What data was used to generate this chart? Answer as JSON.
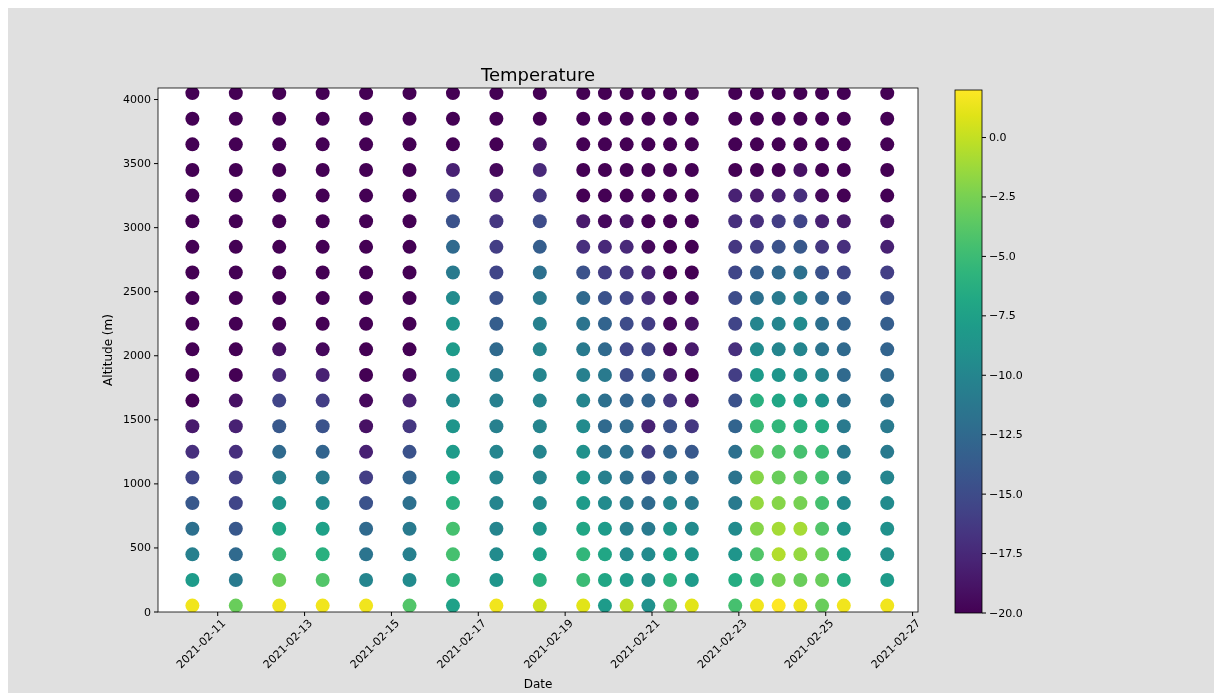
{
  "chart_data": {
    "type": "scatter",
    "title": "Temperature",
    "xlabel": "Date",
    "ylabel": "Altitude (m)",
    "marker": "circle",
    "grid": false,
    "xlim": [
      "2021-02-09T15:00",
      "2021-02-27T03:00"
    ],
    "xticks": [
      "2021-02-11",
      "2021-02-13",
      "2021-02-15",
      "2021-02-17",
      "2021-02-19",
      "2021-02-21",
      "2021-02-23",
      "2021-02-25",
      "2021-02-27"
    ],
    "ylim": [
      0,
      4090
    ],
    "yticks": [
      0,
      500,
      1000,
      1500,
      2000,
      2500,
      3000,
      3500,
      4000
    ],
    "clim": [
      -20,
      2
    ],
    "cticks": [
      {
        "value": 0,
        "label": "0.0"
      },
      {
        "value": -2.5,
        "label": "−2.5"
      },
      {
        "value": -5,
        "label": "−5.0"
      },
      {
        "value": -7.5,
        "label": "−7.5"
      },
      {
        "value": -10,
        "label": "−10.0"
      },
      {
        "value": -12.5,
        "label": "−12.5"
      },
      {
        "value": -15,
        "label": "−15.0"
      },
      {
        "value": -17.5,
        "label": "−17.5"
      },
      {
        "value": -20,
        "label": "−20.0"
      }
    ],
    "x": [
      "2021-02-10T10:00",
      "2021-02-10T10:00",
      "2021-02-10T10:00",
      "2021-02-10T10:00",
      "2021-02-10T10:00",
      "2021-02-10T10:00",
      "2021-02-10T10:00",
      "2021-02-10T10:00",
      "2021-02-10T10:00",
      "2021-02-10T10:00",
      "2021-02-10T10:00",
      "2021-02-10T10:00",
      "2021-02-10T10:00",
      "2021-02-10T10:00",
      "2021-02-10T10:00",
      "2021-02-10T10:00",
      "2021-02-10T10:00",
      "2021-02-10T10:00",
      "2021-02-10T10:00",
      "2021-02-10T10:00",
      "2021-02-10T10:00",
      "2021-02-11T10:00",
      "2021-02-11T10:00",
      "2021-02-11T10:00",
      "2021-02-11T10:00",
      "2021-02-11T10:00",
      "2021-02-11T10:00",
      "2021-02-11T10:00",
      "2021-02-11T10:00",
      "2021-02-11T10:00",
      "2021-02-11T10:00",
      "2021-02-11T10:00",
      "2021-02-11T10:00",
      "2021-02-11T10:00",
      "2021-02-11T10:00",
      "2021-02-11T10:00",
      "2021-02-11T10:00",
      "2021-02-11T10:00",
      "2021-02-11T10:00",
      "2021-02-11T10:00",
      "2021-02-11T10:00",
      "2021-02-11T10:00",
      "2021-02-12T10:00",
      "2021-02-12T10:00",
      "2021-02-12T10:00",
      "2021-02-12T10:00",
      "2021-02-12T10:00",
      "2021-02-12T10:00",
      "2021-02-12T10:00",
      "2021-02-12T10:00",
      "2021-02-12T10:00",
      "2021-02-12T10:00",
      "2021-02-12T10:00",
      "2021-02-12T10:00",
      "2021-02-12T10:00",
      "2021-02-12T10:00",
      "2021-02-12T10:00",
      "2021-02-12T10:00",
      "2021-02-12T10:00",
      "2021-02-12T10:00",
      "2021-02-12T10:00",
      "2021-02-12T10:00",
      "2021-02-12T10:00",
      "2021-02-13T10:00",
      "2021-02-13T10:00",
      "2021-02-13T10:00",
      "2021-02-13T10:00",
      "2021-02-13T10:00",
      "2021-02-13T10:00",
      "2021-02-13T10:00",
      "2021-02-13T10:00",
      "2021-02-13T10:00",
      "2021-02-13T10:00",
      "2021-02-13T10:00",
      "2021-02-13T10:00",
      "2021-02-13T10:00",
      "2021-02-13T10:00",
      "2021-02-13T10:00",
      "2021-02-13T10:00",
      "2021-02-13T10:00",
      "2021-02-13T10:00",
      "2021-02-13T10:00",
      "2021-02-13T10:00",
      "2021-02-13T10:00",
      "2021-02-14T10:00",
      "2021-02-14T10:00",
      "2021-02-14T10:00",
      "2021-02-14T10:00",
      "2021-02-14T10:00",
      "2021-02-14T10:00",
      "2021-02-14T10:00",
      "2021-02-14T10:00",
      "2021-02-14T10:00",
      "2021-02-14T10:00",
      "2021-02-14T10:00",
      "2021-02-14T10:00",
      "2021-02-14T10:00",
      "2021-02-14T10:00",
      "2021-02-14T10:00",
      "2021-02-14T10:00",
      "2021-02-14T10:00",
      "2021-02-14T10:00",
      "2021-02-14T10:00",
      "2021-02-14T10:00",
      "2021-02-14T10:00",
      "2021-02-15T10:00",
      "2021-02-15T10:00",
      "2021-02-15T10:00",
      "2021-02-15T10:00",
      "2021-02-15T10:00",
      "2021-02-15T10:00",
      "2021-02-15T10:00",
      "2021-02-15T10:00",
      "2021-02-15T10:00",
      "2021-02-15T10:00",
      "2021-02-15T10:00",
      "2021-02-15T10:00",
      "2021-02-15T10:00",
      "2021-02-15T10:00",
      "2021-02-15T10:00",
      "2021-02-15T10:00",
      "2021-02-15T10:00",
      "2021-02-15T10:00",
      "2021-02-15T10:00",
      "2021-02-15T10:00",
      "2021-02-15T10:00",
      "2021-02-16T10:00",
      "2021-02-16T10:00",
      "2021-02-16T10:00",
      "2021-02-16T10:00",
      "2021-02-16T10:00",
      "2021-02-16T10:00",
      "2021-02-16T10:00",
      "2021-02-16T10:00",
      "2021-02-16T10:00",
      "2021-02-16T10:00",
      "2021-02-16T10:00",
      "2021-02-16T10:00",
      "2021-02-16T10:00",
      "2021-02-16T10:00",
      "2021-02-16T10:00",
      "2021-02-16T10:00",
      "2021-02-16T10:00",
      "2021-02-16T10:00",
      "2021-02-16T10:00",
      "2021-02-16T10:00",
      "2021-02-16T10:00",
      "2021-02-17T10:00",
      "2021-02-17T10:00",
      "2021-02-17T10:00",
      "2021-02-17T10:00",
      "2021-02-17T10:00",
      "2021-02-17T10:00",
      "2021-02-17T10:00",
      "2021-02-17T10:00",
      "2021-02-17T10:00",
      "2021-02-17T10:00",
      "2021-02-17T10:00",
      "2021-02-17T10:00",
      "2021-02-17T10:00",
      "2021-02-17T10:00",
      "2021-02-17T10:00",
      "2021-02-17T10:00",
      "2021-02-17T10:00",
      "2021-02-17T10:00",
      "2021-02-17T10:00",
      "2021-02-17T10:00",
      "2021-02-17T10:00",
      "2021-02-18T10:00",
      "2021-02-18T10:00",
      "2021-02-18T10:00",
      "2021-02-18T10:00",
      "2021-02-18T10:00",
      "2021-02-18T10:00",
      "2021-02-18T10:00",
      "2021-02-18T10:00",
      "2021-02-18T10:00",
      "2021-02-18T10:00",
      "2021-02-18T10:00",
      "2021-02-18T10:00",
      "2021-02-18T10:00",
      "2021-02-18T10:00",
      "2021-02-18T10:00",
      "2021-02-18T10:00",
      "2021-02-18T10:00",
      "2021-02-18T10:00",
      "2021-02-18T10:00",
      "2021-02-18T10:00",
      "2021-02-18T10:00",
      "2021-02-19T10:00",
      "2021-02-19T10:00",
      "2021-02-19T10:00",
      "2021-02-19T10:00",
      "2021-02-19T10:00",
      "2021-02-19T10:00",
      "2021-02-19T10:00",
      "2021-02-19T10:00",
      "2021-02-19T10:00",
      "2021-02-19T10:00",
      "2021-02-19T10:00",
      "2021-02-19T10:00",
      "2021-02-19T10:00",
      "2021-02-19T10:00",
      "2021-02-19T10:00",
      "2021-02-19T10:00",
      "2021-02-19T10:00",
      "2021-02-19T10:00",
      "2021-02-19T10:00",
      "2021-02-19T10:00",
      "2021-02-19T10:00",
      "2021-02-19T22:00",
      "2021-02-19T22:00",
      "2021-02-19T22:00",
      "2021-02-19T22:00",
      "2021-02-19T22:00",
      "2021-02-19T22:00",
      "2021-02-19T22:00",
      "2021-02-19T22:00",
      "2021-02-19T22:00",
      "2021-02-19T22:00",
      "2021-02-19T22:00",
      "2021-02-19T22:00",
      "2021-02-19T22:00",
      "2021-02-19T22:00",
      "2021-02-19T22:00",
      "2021-02-19T22:00",
      "2021-02-19T22:00",
      "2021-02-19T22:00",
      "2021-02-19T22:00",
      "2021-02-19T22:00",
      "2021-02-19T22:00",
      "2021-02-20T10:00",
      "2021-02-20T10:00",
      "2021-02-20T10:00",
      "2021-02-20T10:00",
      "2021-02-20T10:00",
      "2021-02-20T10:00",
      "2021-02-20T10:00",
      "2021-02-20T10:00",
      "2021-02-20T10:00",
      "2021-02-20T10:00",
      "2021-02-20T10:00",
      "2021-02-20T10:00",
      "2021-02-20T10:00",
      "2021-02-20T10:00",
      "2021-02-20T10:00",
      "2021-02-20T10:00",
      "2021-02-20T10:00",
      "2021-02-20T10:00",
      "2021-02-20T10:00",
      "2021-02-20T10:00",
      "2021-02-20T10:00",
      "2021-02-20T22:00",
      "2021-02-20T22:00",
      "2021-02-20T22:00",
      "2021-02-20T22:00",
      "2021-02-20T22:00",
      "2021-02-20T22:00",
      "2021-02-20T22:00",
      "2021-02-20T22:00",
      "2021-02-20T22:00",
      "2021-02-20T22:00",
      "2021-02-20T22:00",
      "2021-02-20T22:00",
      "2021-02-20T22:00",
      "2021-02-20T22:00",
      "2021-02-20T22:00",
      "2021-02-20T22:00",
      "2021-02-20T22:00",
      "2021-02-20T22:00",
      "2021-02-20T22:00",
      "2021-02-20T22:00",
      "2021-02-20T22:00",
      "2021-02-21T10:00",
      "2021-02-21T10:00",
      "2021-02-21T10:00",
      "2021-02-21T10:00",
      "2021-02-21T10:00",
      "2021-02-21T10:00",
      "2021-02-21T10:00",
      "2021-02-21T10:00",
      "2021-02-21T10:00",
      "2021-02-21T10:00",
      "2021-02-21T10:00",
      "2021-02-21T10:00",
      "2021-02-21T10:00",
      "2021-02-21T10:00",
      "2021-02-21T10:00",
      "2021-02-21T10:00",
      "2021-02-21T10:00",
      "2021-02-21T10:00",
      "2021-02-21T10:00",
      "2021-02-21T10:00",
      "2021-02-21T10:00",
      "2021-02-21T22:00",
      "2021-02-21T22:00",
      "2021-02-21T22:00",
      "2021-02-21T22:00",
      "2021-02-21T22:00",
      "2021-02-21T22:00",
      "2021-02-21T22:00",
      "2021-02-21T22:00",
      "2021-02-21T22:00",
      "2021-02-21T22:00",
      "2021-02-21T22:00",
      "2021-02-21T22:00",
      "2021-02-21T22:00",
      "2021-02-21T22:00",
      "2021-02-21T22:00",
      "2021-02-21T22:00",
      "2021-02-21T22:00",
      "2021-02-21T22:00",
      "2021-02-21T22:00",
      "2021-02-21T22:00",
      "2021-02-21T22:00",
      "2021-02-22T22:00",
      "2021-02-22T22:00",
      "2021-02-22T22:00",
      "2021-02-22T22:00",
      "2021-02-22T22:00",
      "2021-02-22T22:00",
      "2021-02-22T22:00",
      "2021-02-22T22:00",
      "2021-02-22T22:00",
      "2021-02-22T22:00",
      "2021-02-22T22:00",
      "2021-02-22T22:00",
      "2021-02-22T22:00",
      "2021-02-22T22:00",
      "2021-02-22T22:00",
      "2021-02-22T22:00",
      "2021-02-22T22:00",
      "2021-02-22T22:00",
      "2021-02-22T22:00",
      "2021-02-22T22:00",
      "2021-02-22T22:00",
      "2021-02-23T10:00",
      "2021-02-23T10:00",
      "2021-02-23T10:00",
      "2021-02-23T10:00",
      "2021-02-23T10:00",
      "2021-02-23T10:00",
      "2021-02-23T10:00",
      "2021-02-23T10:00",
      "2021-02-23T10:00",
      "2021-02-23T10:00",
      "2021-02-23T10:00",
      "2021-02-23T10:00",
      "2021-02-23T10:00",
      "2021-02-23T10:00",
      "2021-02-23T10:00",
      "2021-02-23T10:00",
      "2021-02-23T10:00",
      "2021-02-23T10:00",
      "2021-02-23T10:00",
      "2021-02-23T10:00",
      "2021-02-23T10:00",
      "2021-02-23T22:00",
      "2021-02-23T22:00",
      "2021-02-23T22:00",
      "2021-02-23T22:00",
      "2021-02-23T22:00",
      "2021-02-23T22:00",
      "2021-02-23T22:00",
      "2021-02-23T22:00",
      "2021-02-23T22:00",
      "2021-02-23T22:00",
      "2021-02-23T22:00",
      "2021-02-23T22:00",
      "2021-02-23T22:00",
      "2021-02-23T22:00",
      "2021-02-23T22:00",
      "2021-02-23T22:00",
      "2021-02-23T22:00",
      "2021-02-23T22:00",
      "2021-02-23T22:00",
      "2021-02-23T22:00",
      "2021-02-23T22:00",
      "2021-02-24T10:00",
      "2021-02-24T10:00",
      "2021-02-24T10:00",
      "2021-02-24T10:00",
      "2021-02-24T10:00",
      "2021-02-24T10:00",
      "2021-02-24T10:00",
      "2021-02-24T10:00",
      "2021-02-24T10:00",
      "2021-02-24T10:00",
      "2021-02-24T10:00",
      "2021-02-24T10:00",
      "2021-02-24T10:00",
      "2021-02-24T10:00",
      "2021-02-24T10:00",
      "2021-02-24T10:00",
      "2021-02-24T10:00",
      "2021-02-24T10:00",
      "2021-02-24T10:00",
      "2021-02-24T10:00",
      "2021-02-24T10:00",
      "2021-02-24T22:00",
      "2021-02-24T22:00",
      "2021-02-24T22:00",
      "2021-02-24T22:00",
      "2021-02-24T22:00",
      "2021-02-24T22:00",
      "2021-02-24T22:00",
      "2021-02-24T22:00",
      "2021-02-24T22:00",
      "2021-02-24T22:00",
      "2021-02-24T22:00",
      "2021-02-24T22:00",
      "2021-02-24T22:00",
      "2021-02-24T22:00",
      "2021-02-24T22:00",
      "2021-02-24T22:00",
      "2021-02-24T22:00",
      "2021-02-24T22:00",
      "2021-02-24T22:00",
      "2021-02-24T22:00",
      "2021-02-24T22:00",
      "2021-02-25T10:00",
      "2021-02-25T10:00",
      "2021-02-25T10:00",
      "2021-02-25T10:00",
      "2021-02-25T10:00",
      "2021-02-25T10:00",
      "2021-02-25T10:00",
      "2021-02-25T10:00",
      "2021-02-25T10:00",
      "2021-02-25T10:00",
      "2021-02-25T10:00",
      "2021-02-25T10:00",
      "2021-02-25T10:00",
      "2021-02-25T10:00",
      "2021-02-25T10:00",
      "2021-02-25T10:00",
      "2021-02-25T10:00",
      "2021-02-25T10:00",
      "2021-02-25T10:00",
      "2021-02-25T10:00",
      "2021-02-25T10:00",
      "2021-02-26T10:00",
      "2021-02-26T10:00",
      "2021-02-26T10:00",
      "2021-02-26T10:00",
      "2021-02-26T10:00",
      "2021-02-26T10:00",
      "2021-02-26T10:00",
      "2021-02-26T10:00",
      "2021-02-26T10:00",
      "2021-02-26T10:00",
      "2021-02-26T10:00",
      "2021-02-26T10:00",
      "2021-02-26T10:00",
      "2021-02-26T10:00",
      "2021-02-26T10:00",
      "2021-02-26T10:00",
      "2021-02-26T10:00",
      "2021-02-26T10:00",
      "2021-02-26T10:00",
      "2021-02-26T10:00",
      "2021-02-26T10:00"
    ],
    "values": [
      50,
      250,
      450,
      650,
      850,
      1050,
      1250,
      1450,
      1650,
      1850,
      2050,
      2250,
      2450,
      2650,
      2850,
      3050,
      3250,
      3450,
      3650,
      3850,
      4050,
      50,
      250,
      450,
      650,
      850,
      1050,
      1250,
      1450,
      1650,
      1850,
      2050,
      2250,
      2450,
      2650,
      2850,
      3050,
      3250,
      3450,
      3650,
      3850,
      4050,
      50,
      250,
      450,
      650,
      850,
      1050,
      1250,
      1450,
      1650,
      1850,
      2050,
      2250,
      2450,
      2650,
      2850,
      3050,
      3250,
      3450,
      3650,
      3850,
      4050,
      50,
      250,
      450,
      650,
      850,
      1050,
      1250,
      1450,
      1650,
      1850,
      2050,
      2250,
      2450,
      2650,
      2850,
      3050,
      3250,
      3450,
      3650,
      3850,
      4050,
      50,
      250,
      450,
      650,
      850,
      1050,
      1250,
      1450,
      1650,
      1850,
      2050,
      2250,
      2450,
      2650,
      2850,
      3050,
      3250,
      3450,
      3650,
      3850,
      4050,
      50,
      250,
      450,
      650,
      850,
      1050,
      1250,
      1450,
      1650,
      1850,
      2050,
      2250,
      2450,
      2650,
      2850,
      3050,
      3250,
      3450,
      3650,
      3850,
      4050,
      50,
      250,
      450,
      650,
      850,
      1050,
      1250,
      1450,
      1650,
      1850,
      2050,
      2250,
      2450,
      2650,
      2850,
      3050,
      3250,
      3450,
      3650,
      3850,
      4050,
      50,
      250,
      450,
      650,
      850,
      1050,
      1250,
      1450,
      1650,
      1850,
      2050,
      2250,
      2450,
      2650,
      2850,
      3050,
      3250,
      3450,
      3650,
      3850,
      4050,
      50,
      250,
      450,
      650,
      850,
      1050,
      1250,
      1450,
      1650,
      1850,
      2050,
      2250,
      2450,
      2650,
      2850,
      3050,
      3250,
      3450,
      3650,
      3850,
      4050,
      50,
      250,
      450,
      650,
      850,
      1050,
      1250,
      1450,
      1650,
      1850,
      2050,
      2250,
      2450,
      2650,
      2850,
      3050,
      3250,
      3450,
      3650,
      3850,
      4050,
      50,
      250,
      450,
      650,
      850,
      1050,
      1250,
      1450,
      1650,
      1850,
      2050,
      2250,
      2450,
      2650,
      2850,
      3050,
      3250,
      3450,
      3650,
      3850,
      4050,
      50,
      250,
      450,
      650,
      850,
      1050,
      1250,
      1450,
      1650,
      1850,
      2050,
      2250,
      2450,
      2650,
      2850,
      3050,
      3250,
      3450,
      3650,
      3850,
      4050,
      50,
      250,
      450,
      650,
      850,
      1050,
      1250,
      1450,
      1650,
      1850,
      2050,
      2250,
      2450,
      2650,
      2850,
      3050,
      3250,
      3450,
      3650,
      3850,
      4050,
      50,
      250,
      450,
      650,
      850,
      1050,
      1250,
      1450,
      1650,
      1850,
      2050,
      2250,
      2450,
      2650,
      2850,
      3050,
      3250,
      3450,
      3650,
      3850,
      4050,
      50,
      250,
      450,
      650,
      850,
      1050,
      1250,
      1450,
      1650,
      1850,
      2050,
      2250,
      2450,
      2650,
      2850,
      3050,
      3250,
      3450,
      3650,
      3850,
      4050,
      50,
      250,
      450,
      650,
      850,
      1050,
      1250,
      1450,
      1650,
      1850,
      2050,
      2250,
      2450,
      2650,
      2850,
      3050,
      3250,
      3450,
      3650,
      3850,
      4050,
      50,
      250,
      450,
      650,
      850,
      1050,
      1250,
      1450,
      1650,
      1850,
      2050,
      2250,
      2450,
      2650,
      2850,
      3050,
      3250,
      3450,
      3650,
      3850,
      4050,
      50,
      250,
      450,
      650,
      850,
      1050,
      1250,
      1450,
      1650,
      1850,
      2050,
      2250,
      2450,
      2650,
      2850,
      3050,
      3250,
      3450,
      3650,
      3850,
      4050,
      50,
      250,
      450,
      650,
      850,
      1050,
      1250,
      1450,
      1650,
      1850,
      2050,
      2250,
      2450,
      2650,
      2850,
      3050,
      3250,
      3450,
      3650,
      3850,
      4050,
      50,
      250,
      450,
      650,
      850,
      1050,
      1250,
      1450,
      1650,
      1850,
      2050,
      2250,
      2450,
      2650,
      2850,
      3050,
      3250,
      3450,
      3650,
      3850,
      4050,
      50,
      250,
      450,
      650,
      850,
      1050,
      1250,
      1450,
      1650,
      1850,
      2050,
      2250,
      2450,
      2650,
      2850,
      3050,
      3250,
      3450,
      3650,
      3850,
      4050,
      50,
      250,
      450,
      650,
      850,
      1050,
      1250,
      1450,
      1650,
      1850,
      2050,
      2250,
      2450,
      2650,
      2850,
      3050,
      3250,
      3450,
      3650,
      3850,
      4050
    ],
    "cvalues": [
      1.5,
      -8,
      -10.5,
      -12,
      -14,
      -15.5,
      -17,
      -18.5,
      -20,
      -20,
      -20,
      -20,
      -20,
      -20,
      -20,
      -20,
      -20,
      -20,
      -20,
      -20,
      -20,
      -3,
      -11,
      -12.5,
      -14,
      -15.5,
      -16,
      -17,
      -18,
      -19,
      -20,
      -20,
      -20,
      -20,
      -20,
      -20,
      -20,
      -20,
      -20,
      -20,
      -20,
      -20,
      1.5,
      -3,
      -5,
      -7,
      -8.5,
      -10.5,
      -12.5,
      -14,
      -15.5,
      -17.5,
      -19,
      -20,
      -20,
      -20,
      -20,
      -20,
      -20,
      -20,
      -20,
      -20,
      -20,
      1.5,
      -4,
      -6,
      -7.5,
      -9.5,
      -11,
      -13,
      -14.5,
      -16,
      -18,
      -19.5,
      -20,
      -20,
      -20,
      -20,
      -20,
      -20,
      -20,
      -20,
      -20,
      -20,
      1.5,
      -10,
      -11.5,
      -12.5,
      -14.5,
      -16,
      -18,
      -19,
      -19.5,
      -20,
      -20,
      -20,
      -20,
      -20,
      -20,
      -20,
      -20,
      -20,
      -20,
      -20,
      -20,
      -4,
      -9.5,
      -10.5,
      -11,
      -12,
      -13,
      -14.5,
      -16.5,
      -18,
      -19.5,
      -20,
      -20,
      -20,
      -20,
      -20,
      -20,
      -20,
      -20,
      -20,
      -20,
      -20,
      -7.5,
      -5.5,
      -4.5,
      -4.5,
      -6,
      -7,
      -8,
      -8.5,
      -9.5,
      -9,
      -8,
      -8.5,
      -9.5,
      -11,
      -12.5,
      -14.5,
      -16,
      -18,
      -20,
      -20,
      -20,
      1.5,
      -8.5,
      -9.5,
      -10,
      -10,
      -10,
      -10,
      -10.5,
      -10.5,
      -11,
      -12.5,
      -13.5,
      -14.5,
      -15.5,
      -16,
      -16.5,
      -18,
      -19.5,
      -20,
      -20,
      -20,
      0.5,
      -6,
      -7.5,
      -8.5,
      -9.5,
      -10,
      -10,
      -10,
      -10,
      -10,
      -10,
      -10.5,
      -11,
      -12,
      -13.5,
      -15,
      -16.5,
      -17.5,
      -19,
      -20,
      -20,
      1,
      -5,
      -5.5,
      -7,
      -8,
      -8.5,
      -9,
      -9.5,
      -10,
      -10.5,
      -11,
      -11.5,
      -12.5,
      -14.5,
      -17,
      -18.5,
      -20,
      -20,
      -20,
      -20,
      -20,
      -8,
      -7,
      -7,
      -8,
      -9.5,
      -10.5,
      -11.5,
      -12.5,
      -12,
      -11,
      -12.5,
      -13,
      -14.5,
      -16,
      -17.5,
      -19.5,
      -20,
      -20,
      -20,
      -20,
      -20,
      0,
      -8,
      -9.5,
      -10.5,
      -11,
      -12,
      -12,
      -12.5,
      -13,
      -15,
      -15.5,
      -15,
      -15.5,
      -16.5,
      -17.5,
      -19,
      -20,
      -20,
      -20,
      -20,
      -20,
      -9,
      -9,
      -9.5,
      -11,
      -12.5,
      -14.5,
      -16,
      -18,
      -13,
      -13,
      -15.5,
      -16,
      -17,
      -18,
      -19.5,
      -20,
      -20,
      -20,
      -20,
      -20,
      -20,
      -3,
      -6,
      -7.5,
      -8.5,
      -10,
      -11.5,
      -13,
      -14.5,
      -16.5,
      -18.5,
      -19.5,
      -19.5,
      -19.5,
      -20,
      -20,
      -20,
      -20,
      -20,
      -20,
      -20,
      -20,
      1,
      -8,
      -8.5,
      -9.5,
      -11,
      -12.5,
      -14,
      -16.5,
      -19,
      -20,
      -18.5,
      -19,
      -19.5,
      -20,
      -20,
      -20,
      -20,
      -20,
      -20,
      -20,
      -20,
      -4.5,
      -6.5,
      -8.5,
      -9.5,
      -11,
      -11.5,
      -12,
      -13,
      -14.5,
      -16,
      -17,
      -15.5,
      -15,
      -15.5,
      -16.5,
      -17,
      -18,
      -20,
      -20,
      -20,
      -20,
      1.5,
      -5,
      -4,
      -2,
      -1.5,
      -2,
      -3,
      -5,
      -6,
      -8,
      -9.5,
      -10,
      -12,
      -13.5,
      -16,
      -17,
      -18.5,
      -20,
      -20,
      -20,
      -20,
      2,
      -2.5,
      -0.5,
      -1,
      -2,
      -3,
      -4,
      -5.5,
      -7,
      -8.5,
      -10,
      -10,
      -11,
      -12.5,
      -14.5,
      -16,
      -18,
      -20,
      -20,
      -20,
      -20,
      1.5,
      -3,
      -1.5,
      -1,
      -2.5,
      -3.5,
      -4.5,
      -6,
      -7.5,
      -9,
      -10,
      -9.5,
      -10.5,
      -12,
      -14,
      -15.5,
      -17,
      -19,
      -20,
      -20,
      -20,
      -3,
      -3,
      -3,
      -4,
      -4.5,
      -4.5,
      -5,
      -6.5,
      -8.5,
      -10,
      -11.5,
      -12,
      -13,
      -14.5,
      -16.5,
      -18,
      -19.5,
      -20,
      -20,
      -20,
      -20,
      1.5,
      -6.5,
      -7.5,
      -8.5,
      -9.5,
      -10.5,
      -11,
      -11,
      -12,
      -12.5,
      -12.5,
      -13,
      -14,
      -15.5,
      -17,
      -18.5,
      -20,
      -20,
      -20,
      -20,
      -20,
      1.5,
      -8,
      -9,
      -9,
      -9.5,
      -10,
      -11,
      -11,
      -12,
      -12.5,
      -13,
      -13.5,
      -14.5,
      -16,
      -18,
      -19,
      -20,
      -20,
      -20,
      -20,
      -20
    ]
  }
}
